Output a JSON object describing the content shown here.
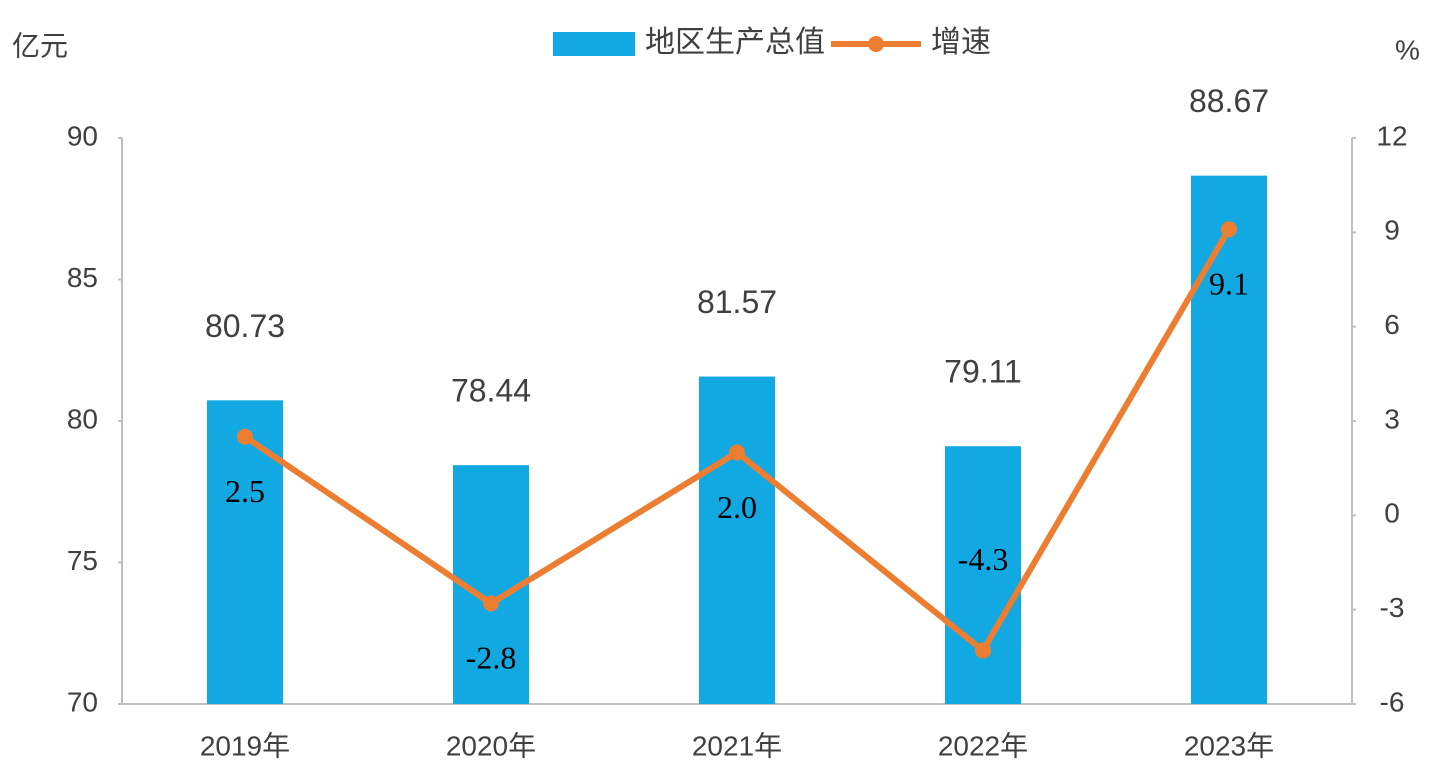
{
  "chart_data": {
    "type": "bar",
    "y_axis_label": "亿元",
    "y2_axis_label": "%",
    "categories": [
      "2019年",
      "2020年",
      "2021年",
      "2022年",
      "2023年"
    ],
    "series": [
      {
        "name": "地区生产总值",
        "type": "bar",
        "color": "#12a9e3",
        "values": [
          80.73,
          78.44,
          81.57,
          79.11,
          88.67
        ]
      },
      {
        "name": "增速",
        "type": "line",
        "axis": "y2",
        "color": "#ed7d31",
        "values": [
          2.5,
          -2.8,
          2.0,
          -4.3,
          9.1
        ],
        "value_labels": [
          "2.5",
          "-2.8",
          "2.0",
          "-4.3",
          "9.1"
        ]
      }
    ],
    "ylim": [
      70,
      90
    ],
    "yticks": [
      70,
      75,
      80,
      85,
      90
    ],
    "y2lim": [
      -6,
      12
    ],
    "y2ticks": [
      -6,
      -3,
      0,
      3,
      6,
      9,
      12
    ],
    "legend": "top",
    "grid": false
  }
}
